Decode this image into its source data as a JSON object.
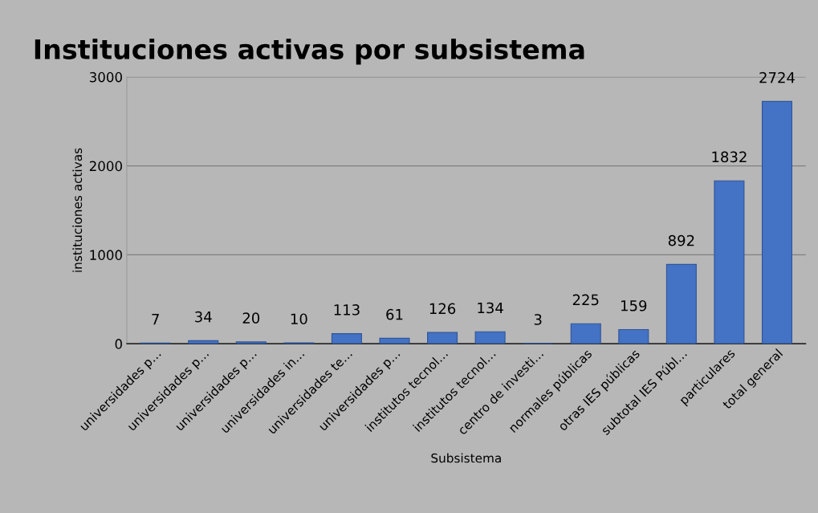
{
  "chart_data": {
    "type": "bar",
    "title": "Instituciones activas por subsistema",
    "xlabel": "Subsistema",
    "ylabel": "instituciones activas",
    "categories": [
      "universidades p…",
      "universidades p…",
      "universidades p…",
      "universidades in…",
      "universidades te…",
      "universidades p…",
      "institutos tecnol…",
      "institutos tecnol…",
      "centro de investi…",
      "normales públicas",
      "otras IES públicas",
      "subtotal IES Públ…",
      "particulares",
      "total general"
    ],
    "values": [
      7,
      34,
      20,
      10,
      113,
      61,
      126,
      134,
      3,
      225,
      159,
      892,
      1832,
      2724
    ],
    "color": "#4472c4",
    "ylim": [
      0,
      3000
    ],
    "yticks": [
      0,
      1000,
      2000,
      3000
    ],
    "grid": "y",
    "data_labels": true,
    "legend": false
  }
}
